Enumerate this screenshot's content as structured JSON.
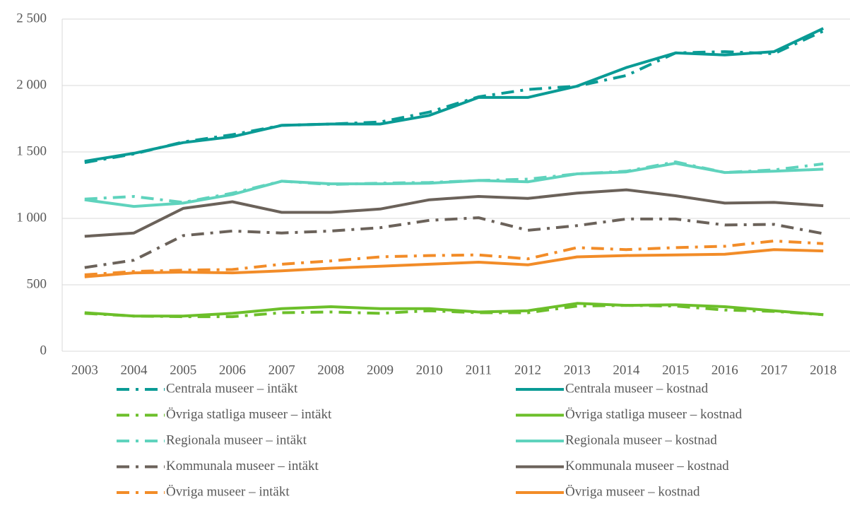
{
  "chart_data": {
    "type": "line",
    "categories": [
      "2003",
      "2004",
      "2005",
      "2006",
      "2007",
      "2008",
      "2009",
      "2010",
      "2011",
      "2012",
      "2013",
      "2014",
      "2015",
      "2016",
      "2017",
      "2018"
    ],
    "ylim": [
      0,
      2500
    ],
    "yticks": [
      0,
      500,
      {
        "value": 1000,
        "label": "1 000"
      },
      {
        "value": 1500,
        "label": "1 500"
      },
      {
        "value": 2000,
        "label": "2 000"
      },
      {
        "value": 2500,
        "label": "2 500"
      }
    ],
    "grid": true,
    "series": [
      {
        "name": "Centrala museer – intäkt",
        "color": "#0a9b95",
        "style": "dash-dot",
        "values": [
          1420,
          1485,
          1575,
          1630,
          1700,
          1710,
          1725,
          1800,
          1915,
          1970,
          1995,
          2075,
          2245,
          2255,
          2240,
          2410
        ]
      },
      {
        "name": "Centrala museer – kostnad",
        "color": "#0a9b95",
        "style": "solid",
        "values": [
          1430,
          1490,
          1570,
          1615,
          1700,
          1710,
          1710,
          1775,
          1910,
          1910,
          1995,
          2135,
          2245,
          2230,
          2255,
          2430
        ]
      },
      {
        "name": "Övriga statliga museer – intäkt",
        "color": "#6cbf2a",
        "style": "dash-dot",
        "values": [
          285,
          265,
          260,
          260,
          290,
          295,
          285,
          305,
          290,
          290,
          340,
          345,
          340,
          310,
          300,
          275
        ]
      },
      {
        "name": "Övriga statliga museer – kostnad",
        "color": "#6cbf2a",
        "style": "solid",
        "values": [
          290,
          265,
          265,
          285,
          320,
          335,
          320,
          320,
          295,
          305,
          360,
          345,
          350,
          335,
          305,
          275
        ]
      },
      {
        "name": "Regionala museer – intäkt",
        "color": "#5fd3bd",
        "style": "dash-dot",
        "values": [
          1145,
          1165,
          1120,
          1190,
          1280,
          1255,
          1265,
          1270,
          1285,
          1295,
          1335,
          1355,
          1425,
          1345,
          1365,
          1410
        ]
      },
      {
        "name": "Regionala museer – kostnad",
        "color": "#5fd3bd",
        "style": "solid",
        "values": [
          1140,
          1090,
          1115,
          1180,
          1280,
          1260,
          1260,
          1265,
          1285,
          1275,
          1335,
          1350,
          1415,
          1345,
          1355,
          1370
        ]
      },
      {
        "name": "Kommunala museer – intäkt",
        "color": "#6b625a",
        "style": "dash-dot",
        "values": [
          630,
          685,
          870,
          905,
          890,
          905,
          930,
          985,
          1005,
          910,
          945,
          995,
          995,
          950,
          955,
          885
        ]
      },
      {
        "name": "Kommunala museer – kostnad",
        "color": "#6b625a",
        "style": "solid",
        "values": [
          865,
          890,
          1075,
          1125,
          1045,
          1045,
          1070,
          1140,
          1165,
          1150,
          1190,
          1215,
          1170,
          1115,
          1120,
          1095
        ]
      },
      {
        "name": "Övriga museer – intäkt",
        "color": "#f28c28",
        "style": "dash-dot",
        "values": [
          575,
          600,
          610,
          615,
          655,
          680,
          710,
          720,
          725,
          695,
          780,
          765,
          780,
          790,
          830,
          810
        ]
      },
      {
        "name": "Övriga museer – kostnad",
        "color": "#f28c28",
        "style": "solid",
        "values": [
          560,
          590,
          595,
          590,
          605,
          625,
          640,
          655,
          670,
          650,
          710,
          720,
          725,
          730,
          765,
          755
        ]
      }
    ]
  }
}
